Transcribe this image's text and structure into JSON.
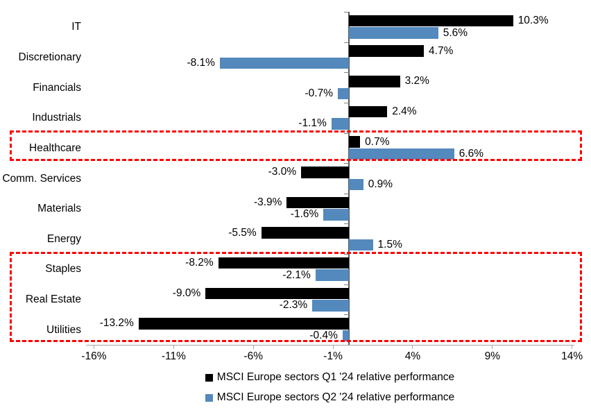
{
  "chart_data": {
    "type": "bar",
    "orientation": "horizontal",
    "categories": [
      "IT",
      "Discretionary",
      "Financials",
      "Industrials",
      "Healthcare",
      "Comm. Services",
      "Materials",
      "Energy",
      "Staples",
      "Real Estate",
      "Utilities"
    ],
    "series": [
      {
        "name": "MSCI Europe sectors Q1 '24 relative performance",
        "color": "#000000",
        "values": [
          10.3,
          4.7,
          3.2,
          2.4,
          0.7,
          -3.0,
          -3.9,
          -5.5,
          -8.2,
          -9.0,
          -13.2
        ],
        "labels": [
          "10.3%",
          "4.7%",
          "3.2%",
          "2.4%",
          "0.7%",
          "-3.0%",
          "-3.9%",
          "-5.5%",
          "-8.2%",
          "-9.0%",
          "-13.2%"
        ]
      },
      {
        "name": "MSCI Europe sectors Q2 '24 relative performance",
        "color": "#5389BD",
        "values": [
          5.6,
          -8.1,
          -0.7,
          -1.1,
          6.6,
          0.9,
          -1.6,
          1.5,
          -2.1,
          -2.3,
          -0.4
        ],
        "labels": [
          "5.6%",
          "-8.1%",
          "-0.7%",
          "-1.1%",
          "6.6%",
          "0.9%",
          "-1.6%",
          "1.5%",
          "-2.1%",
          "-2.3%",
          "-0.4%"
        ]
      }
    ],
    "xlim": [
      -16.5,
      14.1
    ],
    "xticks": {
      "values": [
        -16,
        -11,
        -6,
        -1,
        4,
        9,
        14
      ],
      "labels": [
        "-16%",
        "-11%",
        "-6%",
        "-1%",
        "4%",
        "9%",
        "14%"
      ]
    },
    "grid": false,
    "legend_position": "bottom-center",
    "highlights": [
      {
        "categories": [
          "Healthcare"
        ],
        "color": "#FF0000",
        "style": "dashed"
      },
      {
        "categories": [
          "Staples",
          "Real Estate",
          "Utilities"
        ],
        "color": "#FF0000",
        "style": "dashed"
      }
    ],
    "colors": {
      "axis_line": "#A6A6A6",
      "zero_line": "#595959",
      "row_tick": "#7F7F7F",
      "text": "#000000",
      "background": "#FFFFFF"
    }
  }
}
